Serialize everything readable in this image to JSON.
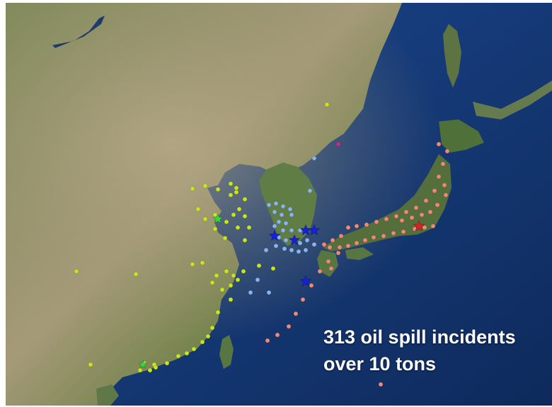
{
  "caption": {
    "line1": "313 oil spill incidents",
    "line2": "over 10 tons"
  },
  "colors": {
    "ocean": "#163a78",
    "land": "#6f7a4c",
    "china_group": "#c8e61e",
    "korea_group": "#8ab4f0",
    "japan_group": "#f08a78",
    "russia_group": "#cc2a8c",
    "star_blue": "#1620d8",
    "star_red": "#e02020",
    "star_green": "#38d838"
  },
  "legend_groups": [
    "china_group",
    "korea_group",
    "japan_group",
    "russia_group"
  ]
}
